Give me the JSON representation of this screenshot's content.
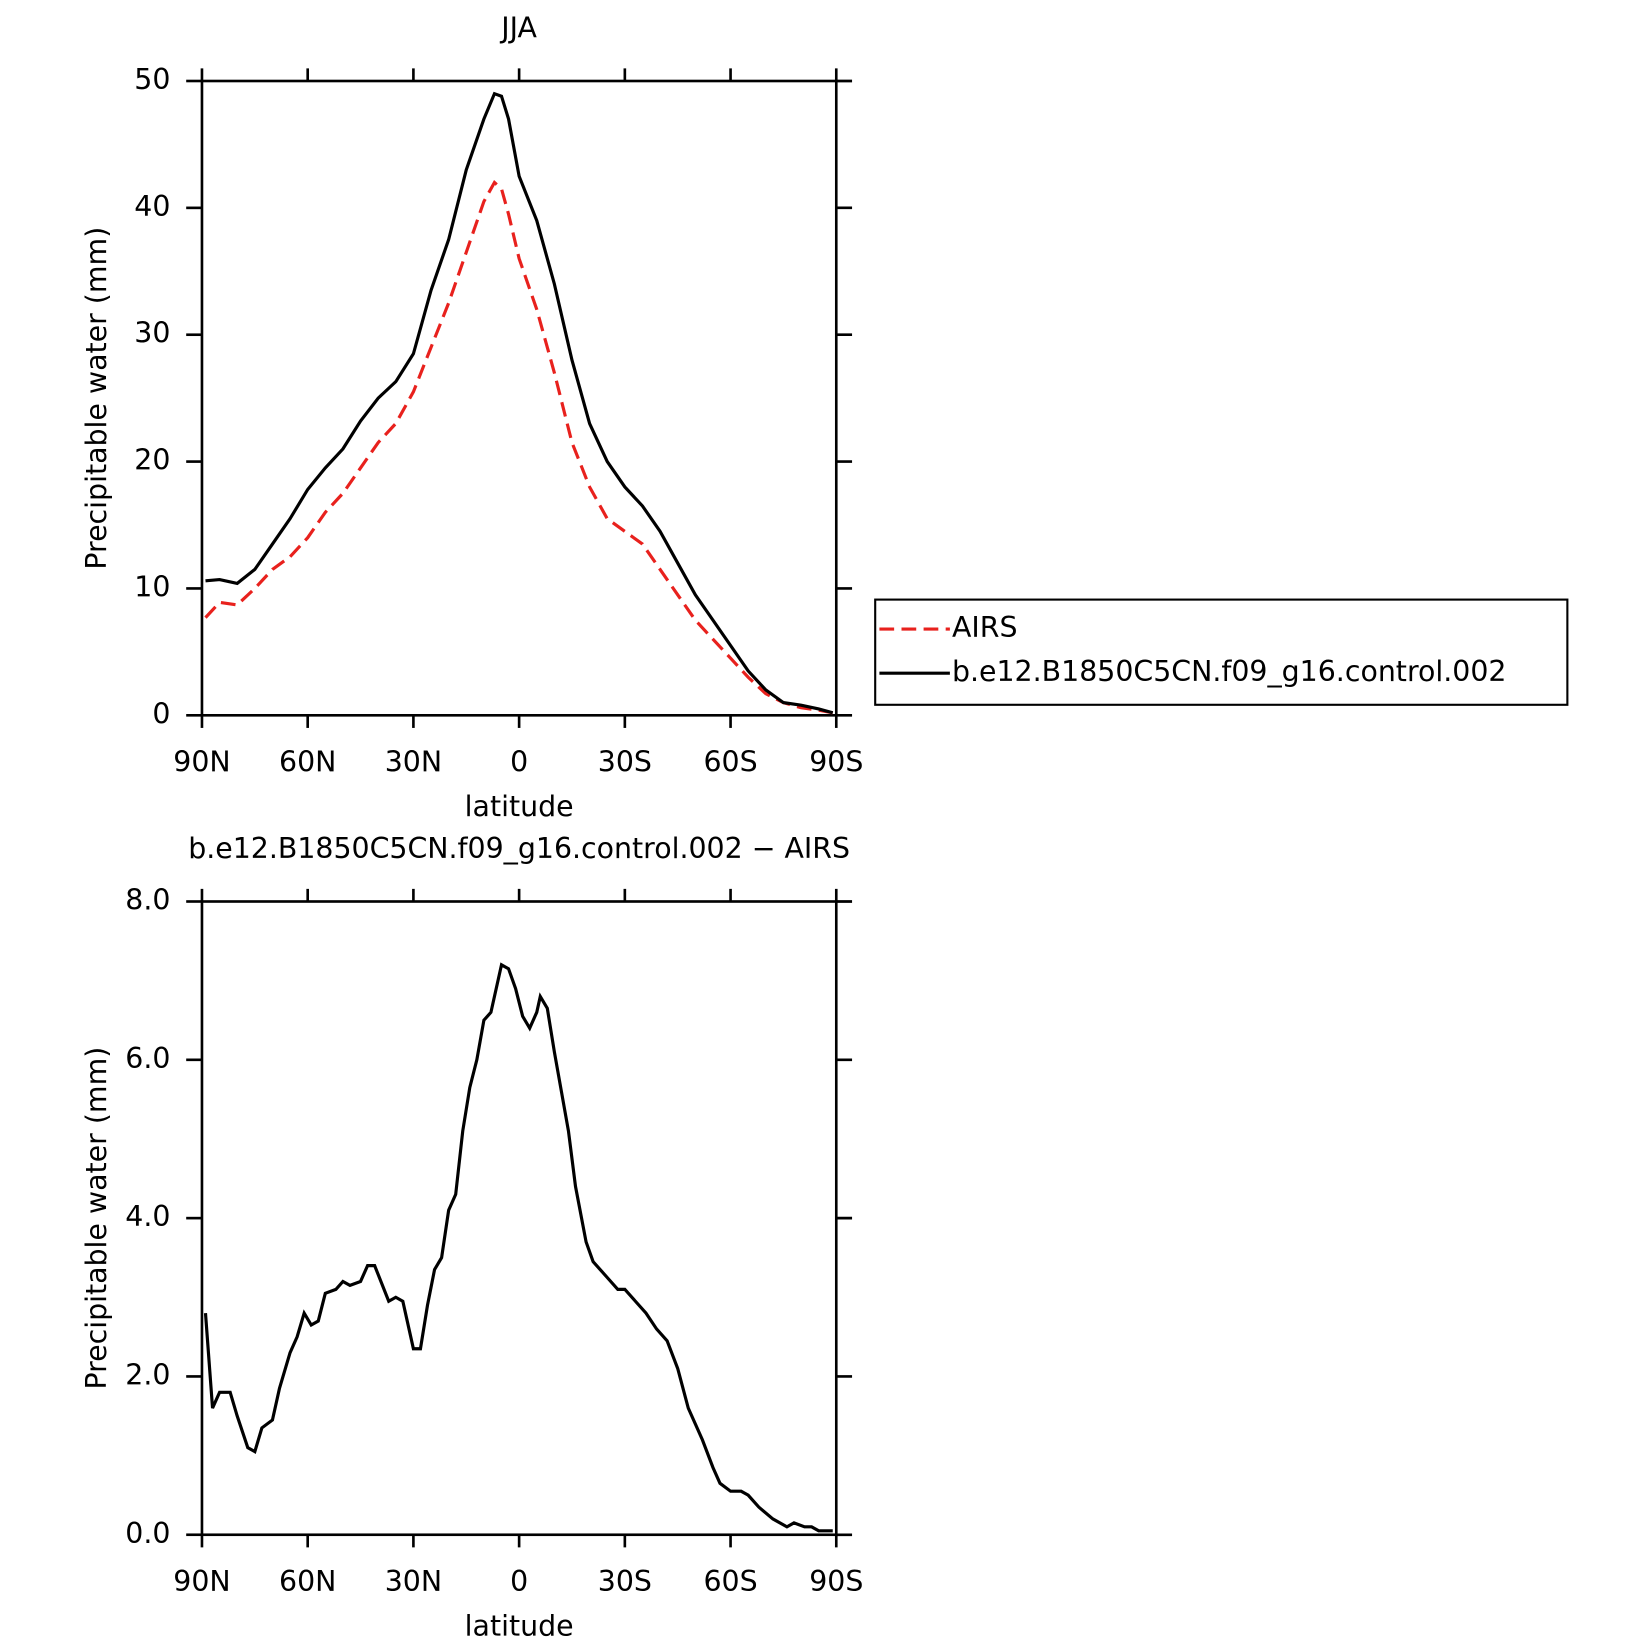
{
  "chart_data": [
    {
      "type": "line",
      "title": "JJA",
      "xlabel": "latitude",
      "ylabel": "Precipitable water (mm)",
      "x": [
        89,
        85,
        80,
        75,
        70,
        65,
        60,
        55,
        50,
        45,
        40,
        35,
        30,
        25,
        20,
        15,
        10,
        7,
        5,
        3,
        0,
        -5,
        -10,
        -15,
        -20,
        -25,
        -30,
        -35,
        -40,
        -45,
        -50,
        -55,
        -60,
        -65,
        -70,
        -75,
        -80,
        -85,
        -89
      ],
      "xlim": [
        90,
        -90
      ],
      "xticks": [
        {
          "value": 90,
          "label": "90N"
        },
        {
          "value": 60,
          "label": "60N"
        },
        {
          "value": 30,
          "label": "30N"
        },
        0,
        {
          "value": -30,
          "label": "30S"
        },
        {
          "value": -60,
          "label": "60S"
        },
        {
          "value": -90,
          "label": "90S"
        }
      ],
      "ylim": [
        0,
        50
      ],
      "yticks": [
        0,
        10,
        20,
        30,
        40,
        50
      ],
      "legend": "right",
      "series": [
        {
          "name": "AIRS",
          "color": "#e8211d",
          "line_style": "dashed",
          "values": [
            7.7,
            8.9,
            8.7,
            10,
            11.5,
            12.5,
            14,
            16,
            17.5,
            19.5,
            21.5,
            23,
            25.5,
            29,
            32.5,
            36.5,
            40.5,
            42,
            41.5,
            39.5,
            36,
            32,
            27,
            21.5,
            18,
            15.5,
            14.5,
            13.5,
            11.5,
            9.5,
            7.5,
            6,
            4.5,
            3,
            1.7,
            1,
            0.6,
            0.4,
            0.2
          ]
        },
        {
          "name": "b.e12.B1850C5CN.f09_g16.control.002",
          "color": "#000000",
          "line_style": "solid",
          "values": [
            10.6,
            10.7,
            10.4,
            11.5,
            13.5,
            15.5,
            17.8,
            19.5,
            21,
            23.2,
            25,
            26.3,
            28.5,
            33.5,
            37.5,
            43,
            47,
            49,
            48.8,
            47,
            42.5,
            39,
            34,
            28,
            23,
            20,
            18,
            16.5,
            14.5,
            12,
            9.5,
            7.5,
            5.5,
            3.5,
            2,
            1,
            0.8,
            0.5,
            0.2
          ]
        }
      ]
    },
    {
      "type": "line",
      "title": "b.e12.B1850C5CN.f09_g16.control.002 − AIRS",
      "xlabel": "latitude",
      "ylabel": "Precipitable water (mm)",
      "x": [
        89,
        87,
        85,
        82,
        80,
        77,
        75,
        73,
        70,
        68,
        65,
        63,
        61,
        59,
        57,
        55,
        52,
        50,
        48,
        45,
        43,
        41,
        37,
        35,
        33,
        30,
        28,
        26,
        24,
        22,
        20,
        18,
        16,
        14,
        12,
        10,
        8,
        5,
        3,
        1,
        -1,
        -3,
        -5,
        -6,
        -8,
        -10,
        -12,
        -14,
        -16,
        -19,
        -21,
        -25,
        -28,
        -30,
        -33,
        -36,
        -39,
        -42,
        -45,
        -48,
        -52,
        -55,
        -57,
        -60,
        -63,
        -65,
        -68,
        -72,
        -76,
        -78,
        -81,
        -83,
        -85,
        -89
      ],
      "xlim": [
        90,
        -90
      ],
      "xticks": [
        {
          "value": 90,
          "label": "90N"
        },
        {
          "value": 60,
          "label": "60N"
        },
        {
          "value": 30,
          "label": "30N"
        },
        0,
        {
          "value": -30,
          "label": "30S"
        },
        {
          "value": -60,
          "label": "60S"
        },
        {
          "value": -90,
          "label": "90S"
        }
      ],
      "ylim": [
        0,
        8
      ],
      "yticks": [
        {
          "value": 0,
          "label": "0.0"
        },
        {
          "value": 2,
          "label": "2.0"
        },
        {
          "value": 4,
          "label": "4.0"
        },
        {
          "value": 6,
          "label": "6.0"
        },
        {
          "value": 8,
          "label": "8.0"
        }
      ],
      "series": [
        {
          "color": "#000000",
          "line_style": "solid",
          "values": [
            2.8,
            1.6,
            1.8,
            1.8,
            1.5,
            1.1,
            1.05,
            1.35,
            1.45,
            1.85,
            2.3,
            2.5,
            2.8,
            2.65,
            2.7,
            3.05,
            3.1,
            3.2,
            3.15,
            3.2,
            3.4,
            3.4,
            2.95,
            3.0,
            2.95,
            2.35,
            2.35,
            2.9,
            3.35,
            3.5,
            4.1,
            4.3,
            5.1,
            5.65,
            6.0,
            6.5,
            6.6,
            7.2,
            7.15,
            6.9,
            6.55,
            6.4,
            6.6,
            6.8,
            6.65,
            6.1,
            5.6,
            5.1,
            4.4,
            3.7,
            3.45,
            3.25,
            3.1,
            3.1,
            2.95,
            2.8,
            2.6,
            2.45,
            2.1,
            1.6,
            1.2,
            0.85,
            0.65,
            0.55,
            0.55,
            0.5,
            0.35,
            0.2,
            0.1,
            0.15,
            0.1,
            0.1,
            0.05,
            0.05
          ]
        }
      ]
    }
  ]
}
